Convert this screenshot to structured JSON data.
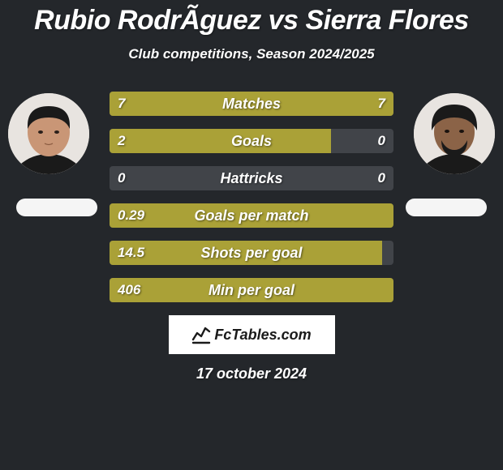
{
  "title": "Rubio RodrÃ­guez vs Sierra Flores",
  "subtitle": "Club competitions, Season 2024/2025",
  "footer_brand": "FcTables.com",
  "footer_date": "17 october 2024",
  "colors": {
    "bar_fill": "#aaa137",
    "bar_bg": "#414449",
    "page_bg": "#24272b",
    "text": "#ffffff",
    "badge_bg": "#ffffff",
    "badge_text": "#1a1a1a",
    "avatar_bg": "#e8e4e0",
    "pill_bg": "#f5f5f5"
  },
  "player_left": {
    "name": "Rubio RodrÃ­guez"
  },
  "player_right": {
    "name": "Sierra Flores"
  },
  "stats": [
    {
      "label": "Matches",
      "left_value": "7",
      "right_value": "7",
      "left_bar_pct": 50,
      "right_bar_pct": 50
    },
    {
      "label": "Goals",
      "left_value": "2",
      "right_value": "0",
      "left_bar_pct": 78,
      "right_bar_pct": 0
    },
    {
      "label": "Hattricks",
      "left_value": "0",
      "right_value": "0",
      "left_bar_pct": 0,
      "right_bar_pct": 0
    },
    {
      "label": "Goals per match",
      "left_value": "0.29",
      "right_value": "",
      "left_bar_pct": 100,
      "right_bar_pct": 0
    },
    {
      "label": "Shots per goal",
      "left_value": "14.5",
      "right_value": "",
      "left_bar_pct": 96,
      "right_bar_pct": 0
    },
    {
      "label": "Min per goal",
      "left_value": "406",
      "right_value": "",
      "left_bar_pct": 100,
      "right_bar_pct": 0
    }
  ]
}
